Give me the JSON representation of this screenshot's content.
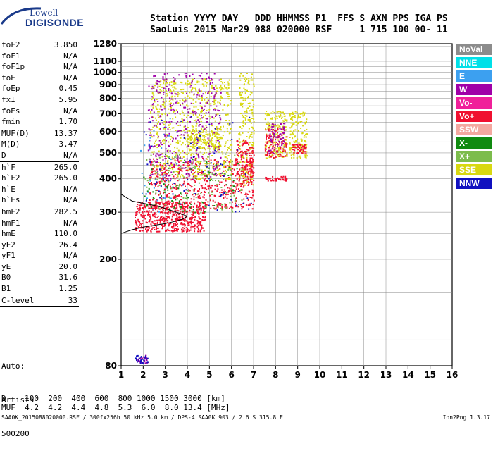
{
  "logo": {
    "line1": "Lowell",
    "line2": "DIGISONDE"
  },
  "header": {
    "row1": "Station YYYY DAY   DDD HHMMSS P1  FFS S AXN PPS IGA PS",
    "row2": "SaoLuis 2015 Mar29 088 020000 RSF     1 715 100 00- 11"
  },
  "params": [
    {
      "name": "foF2",
      "value": "3.850"
    },
    {
      "name": "foF1",
      "value": "N/A"
    },
    {
      "name": "foF1p",
      "value": "N/A"
    },
    {
      "name": "foE",
      "value": "N/A"
    },
    {
      "name": "foEp",
      "value": "0.45"
    },
    {
      "name": "fxI",
      "value": "5.95"
    },
    {
      "name": "foEs",
      "value": "N/A"
    },
    {
      "name": "fmin",
      "value": "1.70"
    },
    {
      "name": "MUF(D)",
      "value": "13.37"
    },
    {
      "name": "M(D)",
      "value": "3.47"
    },
    {
      "name": "D",
      "value": "N/A"
    },
    {
      "name": "h`F",
      "value": "265.0"
    },
    {
      "name": "h`F2",
      "value": "265.0"
    },
    {
      "name": "h`E",
      "value": "N/A"
    },
    {
      "name": "h`Es",
      "value": "N/A"
    },
    {
      "name": "hmF2",
      "value": "282.5"
    },
    {
      "name": "hmF1",
      "value": "N/A"
    },
    {
      "name": "hmE",
      "value": "110.0"
    },
    {
      "name": "yF2",
      "value": "26.4"
    },
    {
      "name": "yF1",
      "value": "N/A"
    },
    {
      "name": "yE",
      "value": "20.0"
    },
    {
      "name": "B0",
      "value": "31.6"
    },
    {
      "name": "B1",
      "value": "1.25"
    },
    {
      "name": "C-level",
      "value": "33"
    }
  ],
  "auto": {
    "line1": "Auto:",
    "line2": "Artist5",
    "line3": "500200"
  },
  "legend": [
    {
      "label": "NoVal",
      "color": "#8c8c8c"
    },
    {
      "label": "NNE",
      "color": "#00e0e8"
    },
    {
      "label": "E",
      "color": "#3ca0f0"
    },
    {
      "label": "W",
      "color": "#a000a8"
    },
    {
      "label": "Vo-",
      "color": "#f0209a"
    },
    {
      "label": "Vo+",
      "color": "#f01030"
    },
    {
      "label": "SSW",
      "color": "#f4a8a0"
    },
    {
      "label": "X-",
      "color": "#108a10"
    },
    {
      "label": "X+",
      "color": "#7cbc4c"
    },
    {
      "label": "SSE",
      "color": "#d8d810"
    },
    {
      "label": "NNW",
      "color": "#1010c0"
    }
  ],
  "chart_data": {
    "type": "scatter",
    "x_ticks": [
      "1",
      "2",
      "3",
      "4",
      "5",
      "6",
      "7",
      "8",
      "9",
      "10",
      "11",
      "12",
      "13",
      "14",
      "15",
      "16"
    ],
    "y_ticks": [
      "80",
      "200",
      "300",
      "400",
      "500",
      "600",
      "700",
      "800",
      "900",
      "1000",
      "1100",
      "1280"
    ],
    "xlim": [
      1,
      16
    ],
    "ylim": [
      80,
      1280
    ],
    "y_scale": "log",
    "grid": true,
    "clusters": [
      {
        "color": "#f01030",
        "fmin": 1.6,
        "fmax": 4.8,
        "hmin": 255,
        "hmax": 330,
        "n": 520
      },
      {
        "color": "#f01030",
        "fmin": 2.2,
        "fmax": 7.0,
        "hmin": 310,
        "hmax": 480,
        "n": 520
      },
      {
        "color": "#d8d810",
        "fmin": 2.3,
        "fmax": 6.0,
        "hmin": 400,
        "hmax": 950,
        "n": 650
      },
      {
        "color": "#a000a8",
        "fmin": 2.2,
        "fmax": 5.5,
        "hmin": 400,
        "hmax": 1000,
        "n": 380
      },
      {
        "color": "#d8d810",
        "fmin": 4.0,
        "fmax": 5.5,
        "hmin": 520,
        "hmax": 620,
        "n": 150
      },
      {
        "color": "#d8d810",
        "fmin": 6.3,
        "fmax": 7.0,
        "hmin": 380,
        "hmax": 1000,
        "n": 200
      },
      {
        "color": "#f01030",
        "fmin": 6.2,
        "fmax": 7.0,
        "hmin": 380,
        "hmax": 560,
        "n": 150
      },
      {
        "color": "#d8d810",
        "fmin": 7.5,
        "fmax": 8.5,
        "hmin": 480,
        "hmax": 720,
        "n": 180
      },
      {
        "color": "#f01030",
        "fmin": 7.5,
        "fmax": 8.5,
        "hmin": 480,
        "hmax": 620,
        "n": 110
      },
      {
        "color": "#a000a8",
        "fmin": 7.6,
        "fmax": 8.4,
        "hmin": 500,
        "hmax": 650,
        "n": 60
      },
      {
        "color": "#d8d810",
        "fmin": 8.6,
        "fmax": 9.4,
        "hmin": 480,
        "hmax": 720,
        "n": 140
      },
      {
        "color": "#f01030",
        "fmin": 8.7,
        "fmax": 9.4,
        "hmin": 500,
        "hmax": 540,
        "n": 60
      },
      {
        "color": "#7cbc4c",
        "fmin": 2.0,
        "fmax": 6.5,
        "hmin": 300,
        "hmax": 500,
        "n": 140
      },
      {
        "color": "#108a10",
        "fmin": 2.0,
        "fmax": 6.5,
        "hmin": 300,
        "hmax": 500,
        "n": 80
      },
      {
        "color": "#1010c0",
        "fmin": 2.0,
        "fmax": 7.0,
        "hmin": 300,
        "hmax": 700,
        "n": 80
      },
      {
        "color": "#3ca0f0",
        "fmin": 1.8,
        "fmax": 3.5,
        "hmin": 300,
        "hmax": 700,
        "n": 30
      },
      {
        "color": "#a000a8",
        "fmin": 1.6,
        "fmax": 2.2,
        "hmin": 82,
        "hmax": 88,
        "n": 25
      },
      {
        "color": "#1010c0",
        "fmin": 1.6,
        "fmax": 2.2,
        "hmin": 82,
        "hmax": 88,
        "n": 25
      },
      {
        "color": "#f01030",
        "fmin": 7.5,
        "fmax": 8.5,
        "hmin": 395,
        "hmax": 410,
        "n": 40
      }
    ],
    "profile": {
      "f": [
        1.0,
        1.5,
        2.0,
        2.5,
        3.0,
        3.5,
        3.8,
        4.0,
        3.5,
        3.0,
        2.5,
        1.5,
        1.0
      ],
      "h": [
        250,
        258,
        264,
        268,
        272,
        278,
        283,
        290,
        300,
        310,
        318,
        330,
        350
      ]
    }
  },
  "mufs": {
    "line1": "D    100  200  400  600  800 1000 1500 3000 [km]",
    "line2": "MUF  4.2  4.2  4.4  4.8  5.3  6.0  8.0 13.4 [MHz]"
  },
  "footer": "SAA0K_2015088020000.RSF / 300fx256h 50 kHz 5.0 km / DPS-4 SAA0K 903 / 2.6 S 315.8 E",
  "version": "Ion2Png 1.3.17"
}
